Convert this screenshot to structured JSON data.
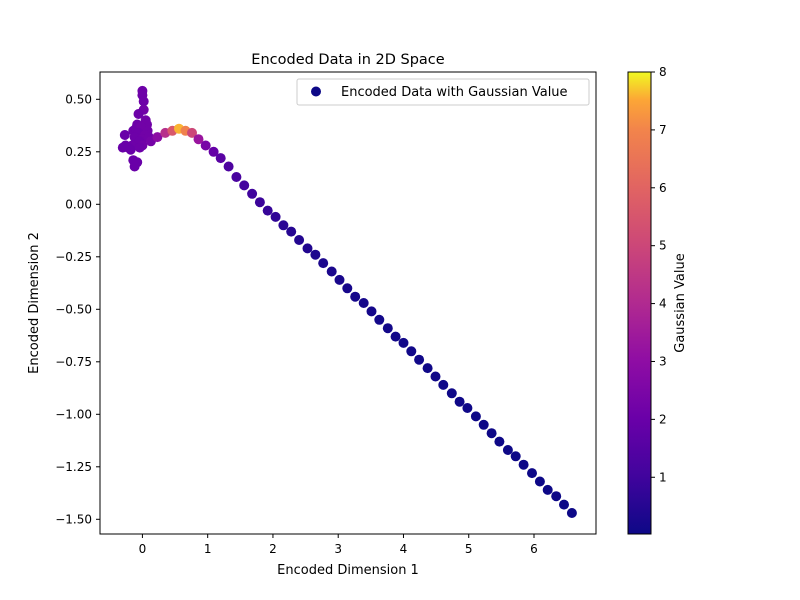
{
  "chart_data": {
    "type": "scatter",
    "title": "Encoded Data in 2D Space",
    "xlabel": "Encoded Dimension 1",
    "ylabel": "Encoded Dimension 2",
    "xlim": [
      -0.65,
      6.95
    ],
    "ylim": [
      -1.57,
      0.63
    ],
    "xticks": [
      0,
      1,
      2,
      3,
      4,
      5,
      6
    ],
    "xtick_labels": [
      "0",
      "1",
      "2",
      "3",
      "4",
      "5",
      "6"
    ],
    "yticks": [
      0.5,
      0.25,
      0.0,
      -0.25,
      -0.5,
      -0.75,
      -1.0,
      -1.25,
      -1.5
    ],
    "ytick_labels": [
      "0.50",
      "0.25",
      "0.00",
      "−0.25",
      "−0.50",
      "−0.75",
      "−1.00",
      "−1.25",
      "−1.50"
    ],
    "grid": false,
    "legend": {
      "position": "top-right",
      "entries": [
        "Encoded Data with Gaussian Value"
      ],
      "marker_color": "#0d0887"
    },
    "colorbar": {
      "label": "Gaussian Value",
      "colormap": "plasma",
      "range": [
        0.02,
        8
      ],
      "ticks": [
        1,
        2,
        3,
        4,
        5,
        6,
        7,
        8
      ],
      "tick_labels": [
        "1",
        "2",
        "3",
        "4",
        "5",
        "6",
        "7",
        "8"
      ]
    },
    "series": [
      {
        "points": [
          {
            "x": 0.0,
            "y": 0.54,
            "v": 2.1
          },
          {
            "x": 0.0,
            "y": 0.52,
            "v": 2.1
          },
          {
            "x": 0.02,
            "y": 0.49,
            "v": 2.1
          },
          {
            "x": 0.02,
            "y": 0.45,
            "v": 2.2
          },
          {
            "x": -0.06,
            "y": 0.43,
            "v": 2.1
          },
          {
            "x": 0.05,
            "y": 0.4,
            "v": 2.2
          },
          {
            "x": -0.08,
            "y": 0.38,
            "v": 2.1
          },
          {
            "x": 0.07,
            "y": 0.38,
            "v": 2.2
          },
          {
            "x": -0.14,
            "y": 0.35,
            "v": 2.1
          },
          {
            "x": -0.1,
            "y": 0.36,
            "v": 2.1
          },
          {
            "x": -0.02,
            "y": 0.37,
            "v": 2.2
          },
          {
            "x": 0.08,
            "y": 0.35,
            "v": 2.2
          },
          {
            "x": -0.27,
            "y": 0.33,
            "v": 2.0
          },
          {
            "x": -0.06,
            "y": 0.34,
            "v": 2.1
          },
          {
            "x": 0.04,
            "y": 0.33,
            "v": 2.2
          },
          {
            "x": -0.12,
            "y": 0.32,
            "v": 2.1
          },
          {
            "x": 0.0,
            "y": 0.31,
            "v": 2.2
          },
          {
            "x": 0.1,
            "y": 0.32,
            "v": 2.2
          },
          {
            "x": -0.05,
            "y": 0.3,
            "v": 2.1
          },
          {
            "x": 0.13,
            "y": 0.3,
            "v": 2.3
          },
          {
            "x": -0.16,
            "y": 0.28,
            "v": 2.1
          },
          {
            "x": 0.0,
            "y": 0.28,
            "v": 2.2
          },
          {
            "x": -0.3,
            "y": 0.27,
            "v": 2.0
          },
          {
            "x": -0.26,
            "y": 0.28,
            "v": 2.0
          },
          {
            "x": -0.22,
            "y": 0.27,
            "v": 2.0
          },
          {
            "x": -0.18,
            "y": 0.26,
            "v": 2.0
          },
          {
            "x": -0.04,
            "y": 0.27,
            "v": 2.1
          },
          {
            "x": -0.14,
            "y": 0.21,
            "v": 2.0
          },
          {
            "x": -0.08,
            "y": 0.2,
            "v": 2.0
          },
          {
            "x": -0.12,
            "y": 0.18,
            "v": 2.0
          },
          {
            "x": 0.23,
            "y": 0.32,
            "v": 2.9
          },
          {
            "x": 0.35,
            "y": 0.34,
            "v": 4.2
          },
          {
            "x": 0.46,
            "y": 0.35,
            "v": 5.6
          },
          {
            "x": 0.56,
            "y": 0.36,
            "v": 7.6
          },
          {
            "x": 0.66,
            "y": 0.35,
            "v": 6.9
          },
          {
            "x": 0.76,
            "y": 0.34,
            "v": 5.0
          },
          {
            "x": 0.86,
            "y": 0.31,
            "v": 3.3
          },
          {
            "x": 0.97,
            "y": 0.28,
            "v": 2.4
          },
          {
            "x": 1.09,
            "y": 0.25,
            "v": 1.9
          },
          {
            "x": 1.2,
            "y": 0.22,
            "v": 1.6
          },
          {
            "x": 1.32,
            "y": 0.18,
            "v": 1.3
          },
          {
            "x": 1.44,
            "y": 0.13,
            "v": 1.2
          },
          {
            "x": 1.56,
            "y": 0.09,
            "v": 1.1
          },
          {
            "x": 1.68,
            "y": 0.05,
            "v": 1.0
          },
          {
            "x": 1.8,
            "y": 0.01,
            "v": 0.9
          },
          {
            "x": 1.92,
            "y": -0.03,
            "v": 0.8
          },
          {
            "x": 2.04,
            "y": -0.06,
            "v": 0.7
          },
          {
            "x": 2.16,
            "y": -0.1,
            "v": 0.6
          },
          {
            "x": 2.28,
            "y": -0.13,
            "v": 0.5
          },
          {
            "x": 2.4,
            "y": -0.17,
            "v": 0.45
          },
          {
            "x": 2.53,
            "y": -0.21,
            "v": 0.4
          },
          {
            "x": 2.65,
            "y": -0.24,
            "v": 0.35
          },
          {
            "x": 2.77,
            "y": -0.28,
            "v": 0.3
          },
          {
            "x": 2.9,
            "y": -0.32,
            "v": 0.28
          },
          {
            "x": 3.02,
            "y": -0.36,
            "v": 0.25
          },
          {
            "x": 3.14,
            "y": -0.4,
            "v": 0.22
          },
          {
            "x": 3.26,
            "y": -0.44,
            "v": 0.2
          },
          {
            "x": 3.39,
            "y": -0.47,
            "v": 0.18
          },
          {
            "x": 3.51,
            "y": -0.51,
            "v": 0.16
          },
          {
            "x": 3.63,
            "y": -0.55,
            "v": 0.14
          },
          {
            "x": 3.76,
            "y": -0.59,
            "v": 0.13
          },
          {
            "x": 3.88,
            "y": -0.63,
            "v": 0.12
          },
          {
            "x": 4.0,
            "y": -0.66,
            "v": 0.11
          },
          {
            "x": 4.12,
            "y": -0.7,
            "v": 0.1
          },
          {
            "x": 4.24,
            "y": -0.74,
            "v": 0.09
          },
          {
            "x": 4.37,
            "y": -0.78,
            "v": 0.08
          },
          {
            "x": 4.49,
            "y": -0.82,
            "v": 0.07
          },
          {
            "x": 4.61,
            "y": -0.86,
            "v": 0.06
          },
          {
            "x": 4.74,
            "y": -0.9,
            "v": 0.06
          },
          {
            "x": 4.86,
            "y": -0.94,
            "v": 0.05
          },
          {
            "x": 4.98,
            "y": -0.97,
            "v": 0.05
          },
          {
            "x": 5.11,
            "y": -1.01,
            "v": 0.04
          },
          {
            "x": 5.23,
            "y": -1.05,
            "v": 0.04
          },
          {
            "x": 5.35,
            "y": -1.09,
            "v": 0.04
          },
          {
            "x": 5.47,
            "y": -1.13,
            "v": 0.03
          },
          {
            "x": 5.6,
            "y": -1.17,
            "v": 0.03
          },
          {
            "x": 5.72,
            "y": -1.2,
            "v": 0.03
          },
          {
            "x": 5.84,
            "y": -1.24,
            "v": 0.03
          },
          {
            "x": 5.97,
            "y": -1.28,
            "v": 0.02
          },
          {
            "x": 6.09,
            "y": -1.32,
            "v": 0.02
          },
          {
            "x": 6.21,
            "y": -1.36,
            "v": 0.02
          },
          {
            "x": 6.34,
            "y": -1.39,
            "v": 0.02
          },
          {
            "x": 6.46,
            "y": -1.43,
            "v": 0.02
          },
          {
            "x": 6.58,
            "y": -1.47,
            "v": 0.02
          }
        ]
      }
    ]
  }
}
